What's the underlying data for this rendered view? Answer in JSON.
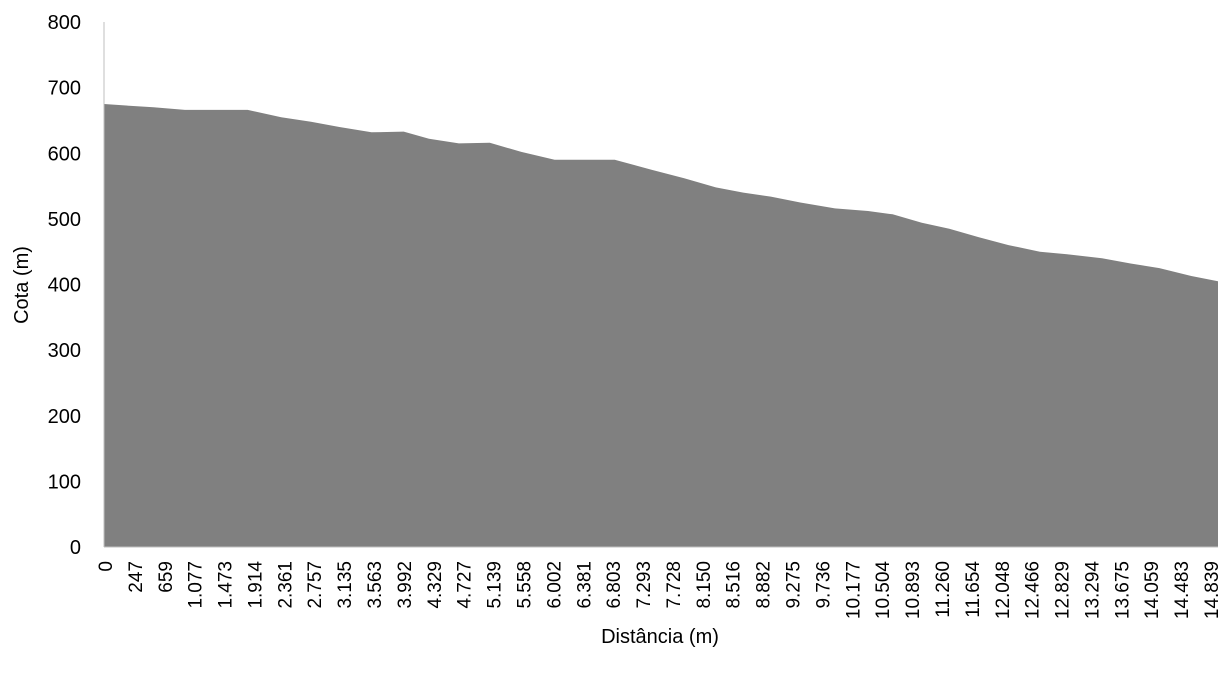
{
  "chart_data": {
    "type": "area",
    "title": "",
    "xlabel": "Distância (m)",
    "ylabel": "Cota (m)",
    "ylim": [
      0,
      800
    ],
    "yticks": [
      "0",
      "100",
      "200",
      "300",
      "400",
      "500",
      "600",
      "700",
      "800"
    ],
    "grid": false,
    "legend": "none",
    "colors": {
      "area": "#808080",
      "axis": "#bfbfbf",
      "text": "#000000"
    },
    "categories": [
      "0",
      "247",
      "659",
      "1.077",
      "1.473",
      "1.914",
      "2.361",
      "2.757",
      "3.135",
      "3.563",
      "3.992",
      "4.329",
      "4.727",
      "5.139",
      "5.558",
      "6.002",
      "6.381",
      "6.803",
      "7.293",
      "7.728",
      "8.150",
      "8.516",
      "8.882",
      "9.275",
      "9.736",
      "10.177",
      "10.504",
      "10.893",
      "11.260",
      "11.654",
      "12.048",
      "12.466",
      "12.829",
      "13.294",
      "13.675",
      "14.059",
      "14.483",
      "14.839"
    ],
    "x": [
      0,
      247,
      659,
      1077,
      1473,
      1914,
      2361,
      2757,
      3135,
      3563,
      3992,
      4329,
      4727,
      5139,
      5558,
      6002,
      6381,
      6803,
      7293,
      7728,
      8150,
      8516,
      8882,
      9275,
      9736,
      10177,
      10504,
      10893,
      11260,
      11654,
      12048,
      12466,
      12829,
      13294,
      13675,
      14059,
      14483,
      14839
    ],
    "values": [
      675,
      673,
      670,
      666,
      666,
      666,
      655,
      648,
      640,
      632,
      633,
      622,
      615,
      616,
      602,
      590,
      590,
      590,
      575,
      562,
      548,
      540,
      534,
      525,
      516,
      512,
      507,
      494,
      485,
      472,
      460,
      450,
      446,
      440,
      432,
      425,
      413,
      405
    ]
  }
}
